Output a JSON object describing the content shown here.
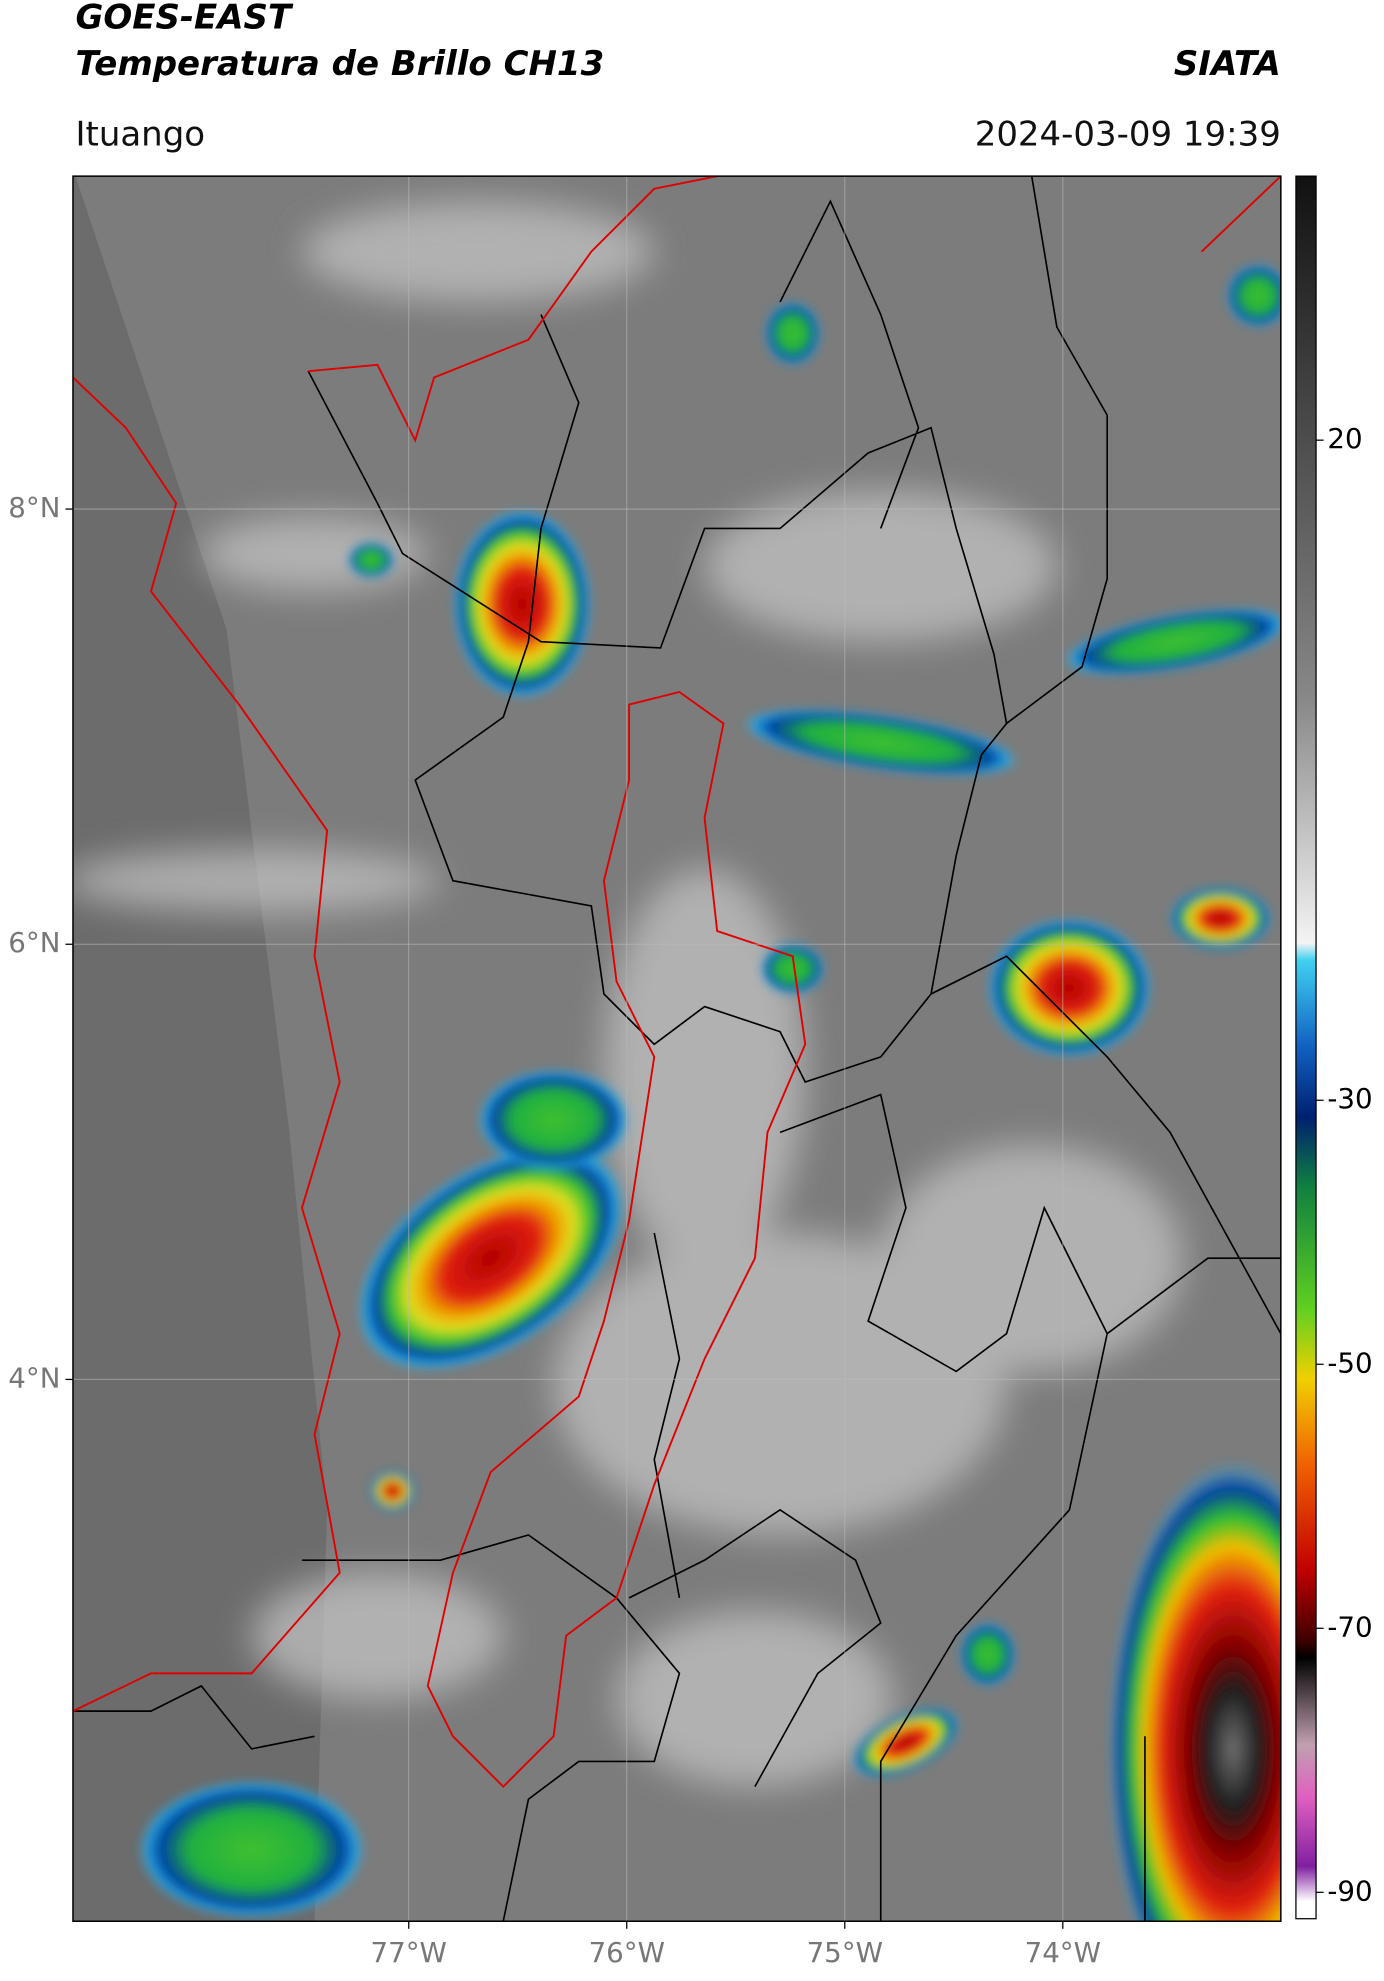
{
  "header": {
    "title": "GOES-EAST",
    "subtitle": "Temperatura de Brillo CH13",
    "agency": "SIATA",
    "location": "Ituango",
    "timestamp": "2024-03-09 19:39"
  },
  "map": {
    "xlim": [
      -78.54,
      -73.0
    ],
    "ylim": [
      1.51,
      9.53
    ],
    "grid": true,
    "xticks": [
      {
        "value": -77,
        "label": "77°W"
      },
      {
        "value": -76,
        "label": "76°W"
      },
      {
        "value": -75,
        "label": "75°W"
      },
      {
        "value": -74,
        "label": "74°W"
      }
    ],
    "yticks": [
      {
        "value": 8,
        "label": "8°N"
      },
      {
        "value": 6,
        "label": "6°N"
      },
      {
        "value": 4,
        "label": "4°N"
      }
    ]
  },
  "colorbar": {
    "lim": [
      -92,
      40
    ],
    "ticks": [
      20,
      -30,
      -50,
      -70,
      -90
    ]
  }
}
